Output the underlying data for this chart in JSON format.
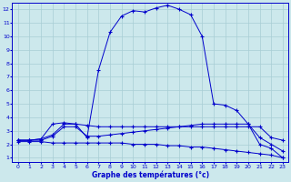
{
  "xlabel": "Graphe des températures (°c)",
  "bg_color": "#cce8ec",
  "grid_color": "#a8cdd4",
  "line_color": "#0000cc",
  "xlim": [
    -0.5,
    23.5
  ],
  "ylim": [
    0.7,
    12.5
  ],
  "xticks": [
    0,
    1,
    2,
    3,
    4,
    5,
    6,
    7,
    8,
    9,
    10,
    11,
    12,
    13,
    14,
    15,
    16,
    17,
    18,
    19,
    20,
    21,
    22,
    23
  ],
  "yticks": [
    1,
    2,
    3,
    4,
    5,
    6,
    7,
    8,
    9,
    10,
    11,
    12
  ],
  "series": {
    "main": {
      "x": [
        0,
        1,
        2,
        3,
        4,
        5,
        6,
        7,
        8,
        9,
        10,
        11,
        12,
        13,
        14,
        15,
        16,
        17,
        18,
        19,
        20,
        21,
        22,
        23
      ],
      "y": [
        2.3,
        2.3,
        2.4,
        2.7,
        3.5,
        3.5,
        2.5,
        7.5,
        10.3,
        11.5,
        11.9,
        11.8,
        12.1,
        12.3,
        12.0,
        11.6,
        10.0,
        5.0,
        4.9,
        4.5,
        3.5,
        2.0,
        1.7,
        1.0
      ]
    },
    "dew": {
      "x": [
        0,
        1,
        2,
        3,
        4,
        5,
        6,
        7,
        8,
        9,
        10,
        11,
        12,
        13,
        14,
        15,
        16,
        17,
        18,
        19,
        20,
        21,
        22,
        23
      ],
      "y": [
        2.2,
        2.2,
        2.2,
        2.1,
        2.1,
        2.1,
        2.1,
        2.1,
        2.1,
        2.1,
        2.0,
        2.0,
        2.0,
        1.9,
        1.9,
        1.8,
        1.8,
        1.7,
        1.6,
        1.5,
        1.4,
        1.3,
        1.2,
        1.0
      ]
    },
    "line3": {
      "x": [
        0,
        1,
        2,
        3,
        4,
        5,
        6,
        7,
        8,
        9,
        10,
        11,
        12,
        13,
        14,
        15,
        16,
        17,
        18,
        19,
        20,
        21,
        22,
        23
      ],
      "y": [
        2.3,
        2.3,
        2.3,
        2.6,
        3.3,
        3.3,
        2.6,
        2.6,
        2.7,
        2.8,
        2.9,
        3.0,
        3.1,
        3.2,
        3.3,
        3.4,
        3.5,
        3.5,
        3.5,
        3.5,
        3.5,
        2.5,
        2.0,
        1.5
      ]
    },
    "line4": {
      "x": [
        0,
        1,
        2,
        3,
        4,
        5,
        6,
        7,
        8,
        9,
        10,
        11,
        12,
        13,
        14,
        15,
        16,
        17,
        18,
        19,
        20,
        21,
        22,
        23
      ],
      "y": [
        2.3,
        2.3,
        2.4,
        3.5,
        3.6,
        3.5,
        3.4,
        3.3,
        3.3,
        3.3,
        3.3,
        3.3,
        3.3,
        3.3,
        3.3,
        3.3,
        3.3,
        3.3,
        3.3,
        3.3,
        3.3,
        3.3,
        2.5,
        2.3
      ]
    }
  }
}
